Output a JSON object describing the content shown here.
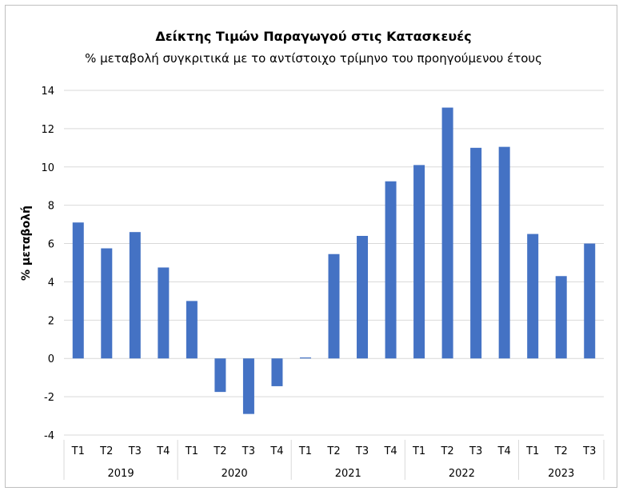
{
  "chart_data": {
    "type": "bar",
    "title": "Δείκτης Τιμών Παραγωγού στις Κατασκευές",
    "subtitle": "% μεταβολή συγκριτικά με το αντίστοιχο τρίμηνο του προηγούμενου έτους",
    "ylabel": "% μεταβολή",
    "xlabel": "",
    "ylim": [
      -4,
      14
    ],
    "yticks": [
      -4,
      -2,
      0,
      2,
      4,
      6,
      8,
      10,
      12,
      14
    ],
    "grid": true,
    "legend": "none",
    "bar_color": "#4472c4",
    "groups": [
      {
        "year": "2019",
        "quarters": [
          "Τ1",
          "Τ2",
          "Τ3",
          "Τ4"
        ]
      },
      {
        "year": "2020",
        "quarters": [
          "Τ1",
          "Τ2",
          "Τ3",
          "Τ4"
        ]
      },
      {
        "year": "2021",
        "quarters": [
          "Τ1",
          "Τ2",
          "Τ3",
          "Τ4"
        ]
      },
      {
        "year": "2022",
        "quarters": [
          "Τ1",
          "Τ2",
          "Τ3",
          "Τ4"
        ]
      },
      {
        "year": "2023",
        "quarters": [
          "Τ1",
          "Τ2",
          "Τ3"
        ]
      }
    ],
    "values": [
      7.1,
      5.75,
      6.6,
      4.75,
      3.0,
      -1.75,
      -2.9,
      -1.45,
      0.05,
      5.45,
      6.4,
      9.25,
      10.1,
      13.1,
      11.0,
      11.05,
      6.5,
      4.3,
      6.0
    ]
  }
}
